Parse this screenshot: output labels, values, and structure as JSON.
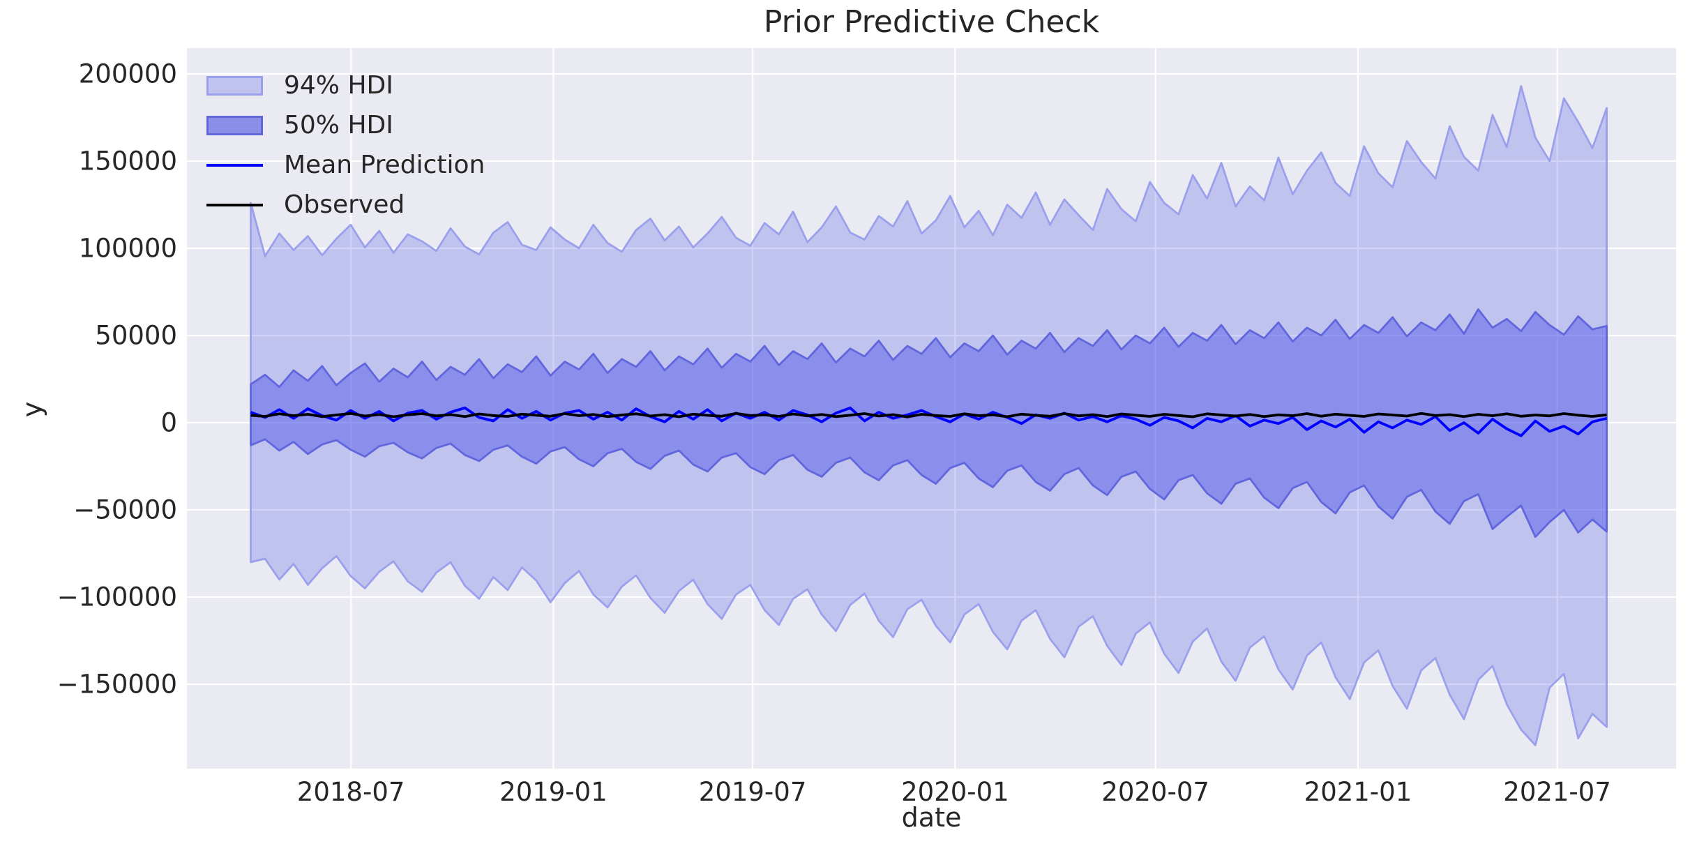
{
  "figure": {
    "title": "Prior Predictive Check",
    "background": "#ffffff"
  },
  "axes": {
    "xlabel": "date",
    "ylabel": "y",
    "background": "#eaeaf2",
    "grid_color": "#ffffff",
    "text_color": "#262626"
  },
  "legend": {
    "position": "upper left",
    "items": [
      {
        "label": "94% HDI",
        "type": "patch",
        "fill": "#c1c3ef",
        "edge": "#9ba0ec"
      },
      {
        "label": "50% HDI",
        "type": "patch",
        "fill": "#8a8ee6",
        "edge": "#6166dd"
      },
      {
        "label": "Mean Prediction",
        "type": "line",
        "color": "#0000ff"
      },
      {
        "label": "Observed",
        "type": "line",
        "color": "#000000"
      }
    ]
  },
  "style": {
    "axes_bg": "#eaeaf2",
    "grid": "#ffffff",
    "grid_width": 2.2,
    "hdi94_fill": "rgba(72,80,230,0.25)",
    "hdi94_edge": "#9ba0ec",
    "hdi50_fill": "rgba(72,80,230,0.45)",
    "hdi50_edge": "#6166dd",
    "band_edge_width": 2.8,
    "mean_color": "#0000ff",
    "observed_color": "#000000",
    "line_width": 3.8
  },
  "chart_data": {
    "type": "line",
    "title": "Prior Predictive Check",
    "xlabel": "date",
    "ylabel": "y",
    "grid": true,
    "legend_position": "upper left",
    "xlim": [
      "2018-02-02",
      "2021-10-17"
    ],
    "ylim": [
      -198400,
      214800
    ],
    "x_ticks": [
      {
        "date": "2018-07-01",
        "label": "2018-07"
      },
      {
        "date": "2019-01-01",
        "label": "2019-01"
      },
      {
        "date": "2019-07-01",
        "label": "2019-07"
      },
      {
        "date": "2020-01-01",
        "label": "2020-01"
      },
      {
        "date": "2020-07-01",
        "label": "2020-07"
      },
      {
        "date": "2021-01-01",
        "label": "2021-01"
      },
      {
        "date": "2021-07-01",
        "label": "2021-07"
      }
    ],
    "y_ticks": [
      {
        "value": 200000,
        "label": "200000"
      },
      {
        "value": 150000,
        "label": "150000"
      },
      {
        "value": 100000,
        "label": "100000"
      },
      {
        "value": 50000,
        "label": "50000"
      },
      {
        "value": 0,
        "label": "0"
      },
      {
        "value": -50000,
        "label": "−50000"
      },
      {
        "value": -100000,
        "label": "−100000"
      },
      {
        "value": -150000,
        "label": "−150000"
      }
    ],
    "x": {
      "start_date": "2018-04-01",
      "end_date": "2021-08-15",
      "n_points": 96,
      "spacing": "uniform-weekly-approx"
    },
    "series": [
      {
        "name": "94% HDI upper",
        "role": "band-upper",
        "band": "94% HDI",
        "values": [
          126000,
          95500,
          108500,
          99000,
          107000,
          96000,
          105500,
          113500,
          100500,
          110000,
          97500,
          108000,
          104000,
          98500,
          111500,
          101000,
          96500,
          109000,
          115000,
          102000,
          99000,
          112000,
          105000,
          100000,
          113500,
          103000,
          98000,
          110500,
          117000,
          104500,
          112500,
          100500,
          108500,
          118000,
          106000,
          101500,
          114500,
          108000,
          121000,
          103500,
          112000,
          124000,
          109000,
          105000,
          118500,
          112500,
          127000,
          108500,
          116000,
          130000,
          112000,
          121500,
          107500,
          125000,
          117500,
          132000,
          113500,
          128000,
          119000,
          110500,
          134000,
          122500,
          115500,
          138000,
          126000,
          119500,
          142000,
          128500,
          149000,
          124000,
          135500,
          127500,
          152000,
          131000,
          144500,
          155000,
          137500,
          130000,
          158500,
          143000,
          135000,
          161500,
          149500,
          140000,
          170000,
          152500,
          144500,
          176500,
          158000,
          193000,
          163500,
          150000,
          186000,
          172500,
          157500,
          180500
        ]
      },
      {
        "name": "94% HDI lower",
        "role": "band-lower",
        "band": "94% HDI",
        "values": [
          -80000,
          -78000,
          -90000,
          -81000,
          -93000,
          -83500,
          -76500,
          -88000,
          -95000,
          -85500,
          -79500,
          -91000,
          -97000,
          -86000,
          -80000,
          -93500,
          -101000,
          -88500,
          -96000,
          -83000,
          -90500,
          -103000,
          -92000,
          -85000,
          -98500,
          -106000,
          -94000,
          -87500,
          -100500,
          -109000,
          -96500,
          -90000,
          -104000,
          -112500,
          -98500,
          -93000,
          -107500,
          -116000,
          -101000,
          -95500,
          -110000,
          -119500,
          -104500,
          -98000,
          -113500,
          -123000,
          -107000,
          -101500,
          -116500,
          -126000,
          -110000,
          -104000,
          -120000,
          -130000,
          -113500,
          -107500,
          -124000,
          -134500,
          -117000,
          -111000,
          -128000,
          -139000,
          -121000,
          -114500,
          -132500,
          -143500,
          -125500,
          -118000,
          -137000,
          -148000,
          -129000,
          -122500,
          -141500,
          -153000,
          -133500,
          -126000,
          -146000,
          -158500,
          -137500,
          -130500,
          -151000,
          -164000,
          -142000,
          -135000,
          -156000,
          -170000,
          -147500,
          -139500,
          -161500,
          -176000,
          -185000,
          -152000,
          -144000,
          -181000,
          -167000,
          -174500
        ]
      },
      {
        "name": "50% HDI upper",
        "role": "band-upper",
        "band": "50% HDI",
        "values": [
          22000,
          27500,
          20500,
          30000,
          24000,
          32500,
          21500,
          28500,
          34000,
          23500,
          31000,
          26000,
          35000,
          24500,
          32000,
          27500,
          36500,
          25500,
          33500,
          29000,
          38000,
          27000,
          35000,
          30500,
          39500,
          28500,
          36500,
          32000,
          41000,
          30000,
          38000,
          33500,
          42500,
          31500,
          39500,
          35000,
          44000,
          33000,
          41000,
          36500,
          45500,
          34500,
          42500,
          38000,
          47000,
          36000,
          44000,
          39500,
          48500,
          37500,
          45500,
          41000,
          50000,
          39000,
          47000,
          42500,
          51500,
          40500,
          48500,
          44000,
          53000,
          42000,
          50000,
          45500,
          54500,
          43500,
          51500,
          47000,
          56000,
          45000,
          53000,
          48500,
          57500,
          46500,
          54500,
          50000,
          59000,
          48000,
          56000,
          51500,
          60500,
          49500,
          57500,
          53000,
          62000,
          51000,
          65000,
          54500,
          59500,
          52500,
          63500,
          56000,
          50500,
          61000,
          53500,
          55500
        ]
      },
      {
        "name": "50% HDI lower",
        "role": "band-lower",
        "band": "50% HDI",
        "values": [
          -13000,
          -9500,
          -16000,
          -11000,
          -18000,
          -12500,
          -10000,
          -15500,
          -19500,
          -13500,
          -11500,
          -17000,
          -20500,
          -14500,
          -12000,
          -18500,
          -22000,
          -15500,
          -13000,
          -19500,
          -23500,
          -16500,
          -14000,
          -21000,
          -25000,
          -17500,
          -15000,
          -22500,
          -26500,
          -19000,
          -16000,
          -24000,
          -28000,
          -20000,
          -17500,
          -25500,
          -29500,
          -21500,
          -18500,
          -27000,
          -31000,
          -23000,
          -20000,
          -28500,
          -33000,
          -24500,
          -21500,
          -30000,
          -35000,
          -26000,
          -23000,
          -32000,
          -37000,
          -27500,
          -24500,
          -34000,
          -39000,
          -29500,
          -26000,
          -36000,
          -41500,
          -31000,
          -28000,
          -38000,
          -44000,
          -33000,
          -30000,
          -40500,
          -46500,
          -35000,
          -32000,
          -43000,
          -49000,
          -37500,
          -34000,
          -45500,
          -52000,
          -40000,
          -36000,
          -48000,
          -55000,
          -42500,
          -38500,
          -51000,
          -58000,
          -45000,
          -41000,
          -61000,
          -54000,
          -47500,
          -65500,
          -57000,
          -50000,
          -63000,
          -55500,
          -62500
        ]
      },
      {
        "name": "Mean Prediction",
        "role": "line",
        "values": [
          6000,
          3000,
          7500,
          2500,
          8000,
          4000,
          1500,
          7000,
          2500,
          6500,
          1000,
          5500,
          7000,
          2000,
          6000,
          8500,
          3000,
          1000,
          7500,
          2500,
          6500,
          1500,
          5500,
          7000,
          2000,
          6000,
          1500,
          8000,
          3500,
          500,
          6500,
          2000,
          7500,
          1000,
          5500,
          2500,
          6000,
          1500,
          7000,
          4500,
          500,
          5500,
          8500,
          1000,
          6000,
          2500,
          4500,
          7000,
          3500,
          500,
          5000,
          2000,
          6000,
          3000,
          -500,
          4500,
          2500,
          5500,
          1500,
          3500,
          500,
          4000,
          2000,
          -1500,
          3000,
          1000,
          -3000,
          2500,
          500,
          4000,
          -2000,
          1500,
          -500,
          3000,
          -4000,
          1000,
          -2500,
          2000,
          -5500,
          500,
          -3000,
          1500,
          -1000,
          3500,
          -4500,
          0,
          -6000,
          2000,
          -3500,
          -7500,
          1000,
          -5000,
          -2000,
          -6500,
          500,
          2500
        ]
      },
      {
        "name": "Observed",
        "role": "line",
        "values": [
          4200,
          3600,
          5100,
          4000,
          4800,
          3500,
          4400,
          5300,
          3800,
          4700,
          3400,
          4500,
          5200,
          3900,
          4600,
          3500,
          5000,
          4100,
          3600,
          4900,
          4300,
          3700,
          5200,
          4000,
          4700,
          3500,
          4400,
          5100,
          3800,
          4600,
          3400,
          4900,
          4200,
          3700,
          5300,
          4100,
          4500,
          3600,
          5000,
          3900,
          4700,
          3500,
          4300,
          5200,
          3800,
          4600,
          3300,
          4800,
          4100,
          3600,
          5100,
          4000,
          4500,
          3400,
          4900,
          4200,
          3700,
          5200,
          3900,
          4600,
          3500,
          5000,
          4300,
          3600,
          4800,
          4100,
          3400,
          5100,
          4400,
          3800,
          4700,
          3500,
          4500,
          4000,
          5200,
          3700,
          4900,
          4200,
          3600,
          5000,
          4400,
          3800,
          5300,
          4100,
          4600,
          3500,
          4800,
          4000,
          5100,
          3700,
          4400,
          3900,
          5200,
          4300,
          3600,
          4500
        ]
      }
    ]
  }
}
